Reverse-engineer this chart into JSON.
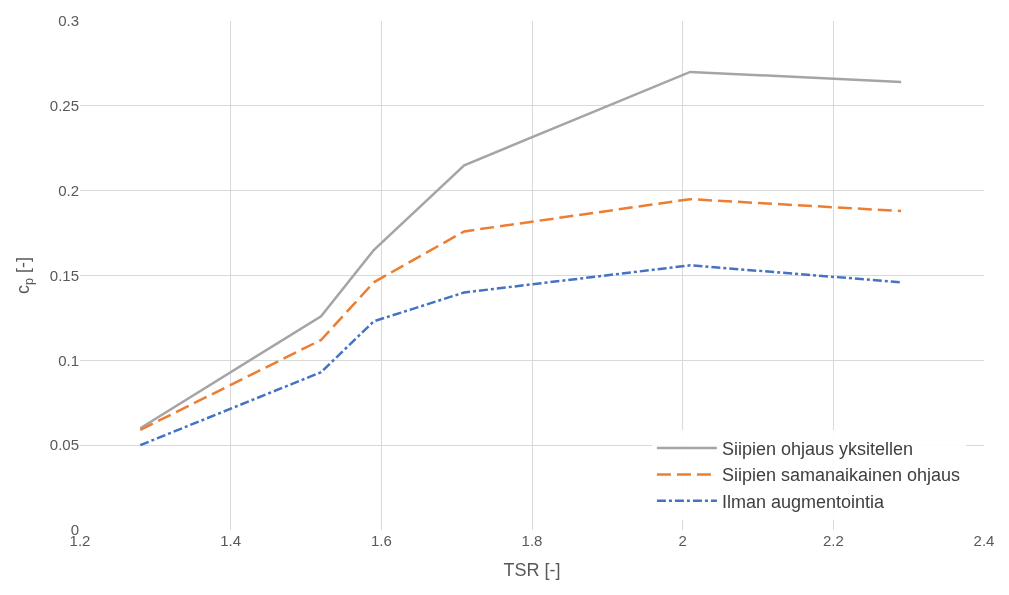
{
  "chart_data": {
    "type": "line",
    "xlabel": "TSR [-]",
    "ylabel": "c$_{p}$ [-]",
    "x": [
      1.28,
      1.52,
      1.59,
      1.71,
      2.01,
      2.29
    ],
    "series": [
      {
        "name": "Siipien ohjaus yksitellen",
        "color": "#a5a5a5",
        "line_style": "solid",
        "values": [
          0.06,
          0.126,
          0.165,
          0.215,
          0.27,
          0.264
        ]
      },
      {
        "name": "Siipien samanaikainen ohjaus",
        "color": "#ed7d31",
        "line_style": "dashed",
        "values": [
          0.059,
          0.112,
          0.146,
          0.176,
          0.195,
          0.188
        ]
      },
      {
        "name": "Ilman augmentointia",
        "color": "#4472c4",
        "line_style": "dashdot",
        "values": [
          0.05,
          0.093,
          0.123,
          0.14,
          0.156,
          0.146
        ]
      }
    ],
    "xlim": [
      1.2,
      2.4
    ],
    "xticks": [
      1.2,
      1.4,
      1.6,
      1.8,
      2,
      2.2,
      2.4
    ],
    "ylim": [
      0,
      0.3
    ],
    "yticks": [
      0,
      0.05,
      0.1,
      0.15,
      0.2,
      0.25,
      0.3
    ],
    "grid": true,
    "legend": "bottom right",
    "marker": "none"
  }
}
